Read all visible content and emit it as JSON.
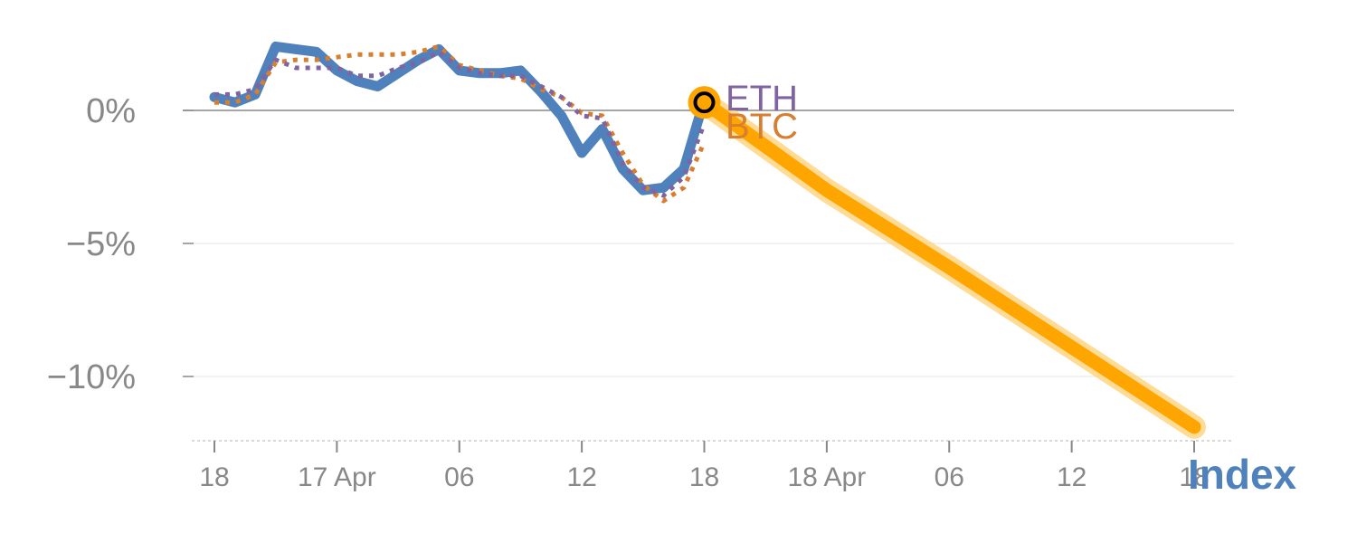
{
  "chart_data": {
    "type": "line",
    "x_unit": "hours",
    "xlim": [
      0,
      96
    ],
    "ylim": [
      -12.5,
      4
    ],
    "y_ticks": [
      {
        "value": 0,
        "label": "0%"
      },
      {
        "value": -5,
        "label": "−5%"
      },
      {
        "value": -10,
        "label": "−10%"
      }
    ],
    "x_ticks": [
      {
        "value": 0,
        "label": "18"
      },
      {
        "value": 12,
        "label": "17 Apr"
      },
      {
        "value": 24,
        "label": "06"
      },
      {
        "value": 36,
        "label": "12"
      },
      {
        "value": 48,
        "label": "18"
      },
      {
        "value": 60,
        "label": "18 Apr"
      },
      {
        "value": 72,
        "label": "06"
      },
      {
        "value": 84,
        "label": "12"
      },
      {
        "value": 96,
        "label": "18"
      }
    ],
    "series": [
      {
        "name": "ETH",
        "color": "#8064a2",
        "style": "dotted",
        "x": [
          0,
          2,
          4,
          6,
          8,
          10,
          12,
          14,
          16,
          18,
          20,
          22,
          24,
          26,
          28,
          30,
          32,
          34,
          36,
          38,
          40,
          42,
          44,
          46,
          48
        ],
        "y": [
          0.6,
          0.6,
          0.8,
          1.9,
          1.6,
          1.6,
          1.6,
          1.3,
          1.3,
          1.6,
          1.8,
          2.2,
          1.6,
          1.4,
          1.3,
          1.3,
          0.9,
          0.5,
          -0.2,
          -0.3,
          -2.0,
          -2.9,
          -3.2,
          -2.5,
          -0.5
        ]
      },
      {
        "name": "BTC",
        "color": "#d97d2e",
        "style": "dotted",
        "x": [
          0,
          2,
          4,
          6,
          8,
          10,
          12,
          14,
          16,
          18,
          20,
          22,
          24,
          26,
          28,
          30,
          32,
          34,
          36,
          38,
          40,
          42,
          44,
          46,
          48
        ],
        "y": [
          0.3,
          0.3,
          0.6,
          1.8,
          1.9,
          1.9,
          2.0,
          2.1,
          2.1,
          2.1,
          2.2,
          2.4,
          1.7,
          1.5,
          1.3,
          1.2,
          0.8,
          0.5,
          -0.1,
          -0.2,
          -1.6,
          -2.8,
          -3.4,
          -2.9,
          -1.2
        ]
      },
      {
        "name": "Index",
        "color": "#4f81bd",
        "style": "solid",
        "x": [
          0,
          2,
          4,
          6,
          8,
          10,
          12,
          14,
          16,
          18,
          20,
          22,
          24,
          26,
          28,
          30,
          32,
          34,
          36,
          38,
          40,
          42,
          44,
          46,
          48
        ],
        "y": [
          0.5,
          0.3,
          0.6,
          2.4,
          2.3,
          2.2,
          1.5,
          1.1,
          0.9,
          1.4,
          1.9,
          2.3,
          1.5,
          1.4,
          1.4,
          1.5,
          0.7,
          -0.2,
          -1.6,
          -0.7,
          -2.2,
          -3.0,
          -2.9,
          -2.2,
          0.4
        ]
      }
    ],
    "projection": {
      "color": "#ffa500",
      "x": [
        48,
        60,
        72,
        84,
        96
      ],
      "y": [
        0.3,
        -3.0,
        -5.9,
        -8.9,
        -11.9
      ]
    },
    "marker": {
      "x": 48,
      "y": 0.3
    }
  }
}
